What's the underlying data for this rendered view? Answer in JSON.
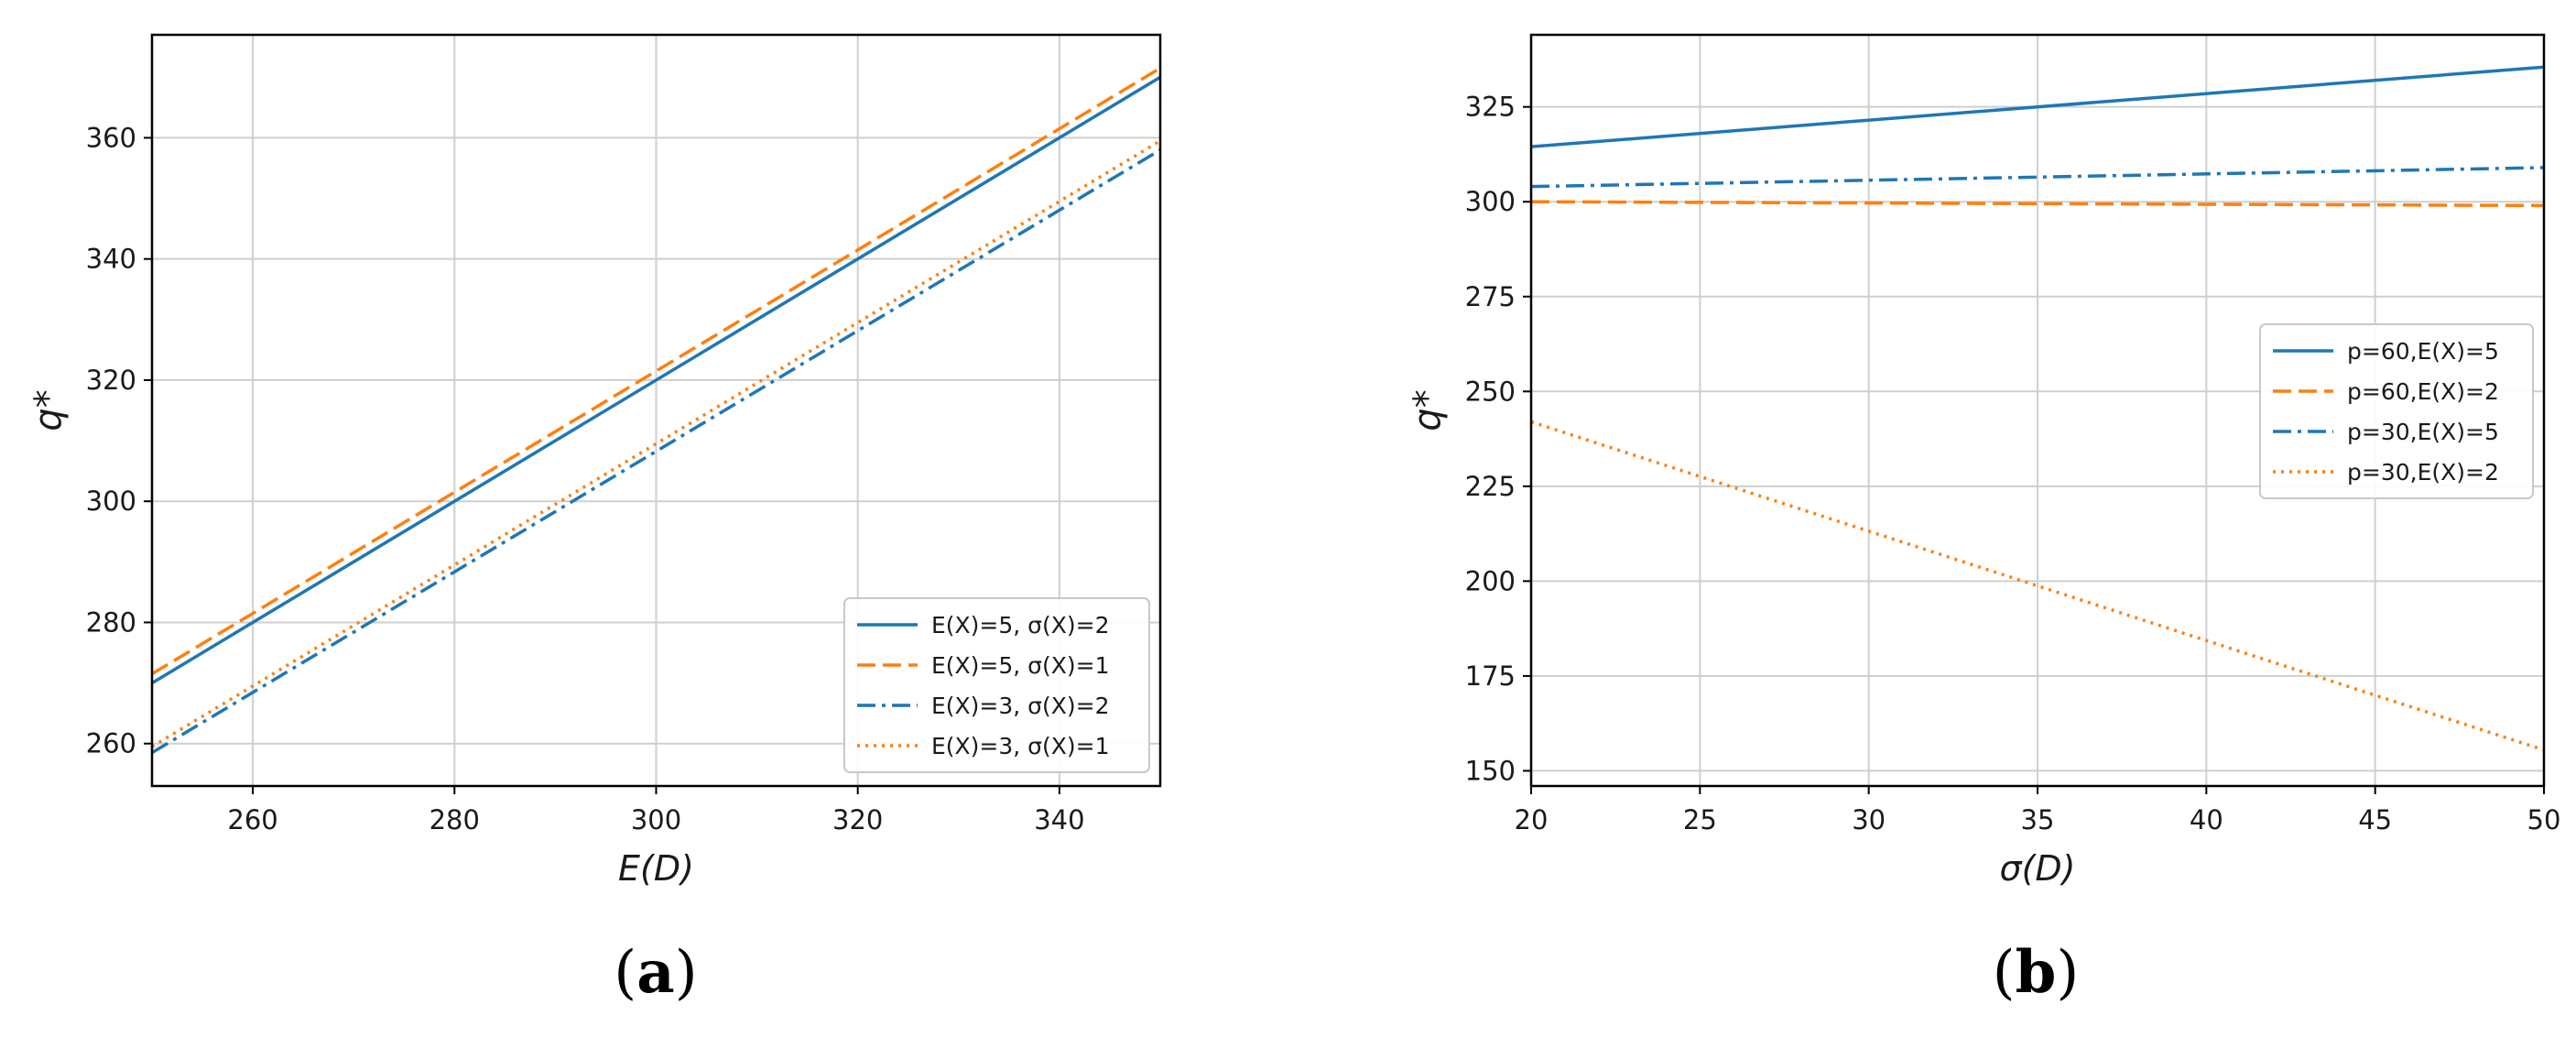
{
  "chart_data": [
    {
      "type": "line",
      "panel_label": "(a)",
      "xlabel": "E(D)",
      "ylabel": "q*",
      "xlim": [
        250,
        350
      ],
      "ylim": [
        253,
        377
      ],
      "xticks": [
        260,
        280,
        300,
        320,
        340
      ],
      "yticks": [
        260,
        280,
        300,
        320,
        340,
        360
      ],
      "grid": true,
      "legend_position": "lower-right",
      "series": [
        {
          "name": "E(X)=5, σ(X)=2",
          "color": "#1f77b4",
          "style": "solid",
          "x": [
            250,
            350
          ],
          "y": [
            270,
            370
          ]
        },
        {
          "name": "E(X)=5, σ(X)=1",
          "color": "#ff7f0e",
          "style": "dashed",
          "x": [
            250,
            350
          ],
          "y": [
            271.5,
            371.5
          ]
        },
        {
          "name": "E(X)=3, σ(X)=2",
          "color": "#1f77b4",
          "style": "dashdot",
          "x": [
            250,
            350
          ],
          "y": [
            258.5,
            358
          ]
        },
        {
          "name": "E(X)=3, σ(X)=1",
          "color": "#ff7f0e",
          "style": "dotted",
          "x": [
            250,
            350
          ],
          "y": [
            259.5,
            359.5
          ]
        }
      ]
    },
    {
      "type": "line",
      "panel_label": "(b)",
      "xlabel": "σ(D)",
      "ylabel": "q*",
      "xlim": [
        20,
        50
      ],
      "ylim": [
        146,
        344
      ],
      "xticks": [
        20,
        25,
        30,
        35,
        40,
        45,
        50
      ],
      "yticks": [
        150,
        175,
        200,
        225,
        250,
        275,
        300,
        325
      ],
      "grid": true,
      "legend_position": "center-right",
      "series": [
        {
          "name": "p=60,E(X)=5",
          "color": "#1f77b4",
          "style": "solid",
          "x": [
            20,
            50
          ],
          "y": [
            314.5,
            335.5
          ]
        },
        {
          "name": "p=60,E(X)=2",
          "color": "#ff7f0e",
          "style": "dashed",
          "x": [
            20,
            50
          ],
          "y": [
            300,
            299
          ]
        },
        {
          "name": "p=30,E(X)=5",
          "color": "#1f77b4",
          "style": "dashdot",
          "x": [
            20,
            50
          ],
          "y": [
            304,
            309
          ]
        },
        {
          "name": "p=30,E(X)=2",
          "color": "#ff7f0e",
          "style": "dotted",
          "x": [
            20,
            50
          ],
          "y": [
            242,
            155.5
          ]
        }
      ]
    }
  ]
}
